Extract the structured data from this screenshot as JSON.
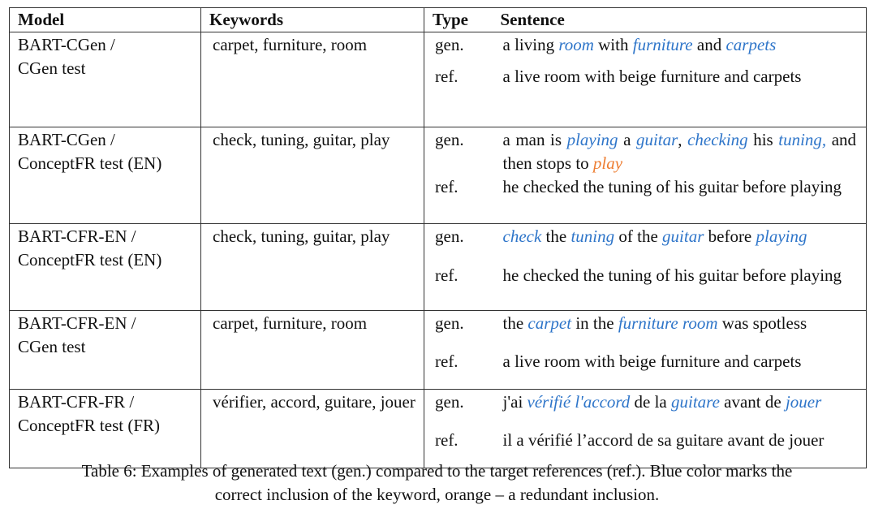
{
  "table": {
    "headers": [
      "Model",
      "Keywords",
      "Type",
      "Sentence"
    ],
    "rows": [
      {
        "model": [
          "BART-CGen /",
          "CGen test"
        ],
        "keywords": "carpet, furniture, room",
        "gen_type": "gen.",
        "gen": [
          [
            "a living ",
            "t"
          ],
          [
            "room",
            "b"
          ],
          [
            " with ",
            "t"
          ],
          [
            "furniture",
            "b"
          ],
          [
            " and ",
            "t"
          ],
          [
            "carpets",
            "b"
          ]
        ],
        "ref_type": "ref.",
        "ref": "a live room with beige furniture and carpets"
      },
      {
        "model": [
          "BART-CGen /",
          "ConceptFR test (EN)"
        ],
        "keywords": "check, tuning, guitar, play",
        "gen_type": "gen.",
        "gen": [
          [
            "a man is ",
            "t"
          ],
          [
            "playing",
            "b"
          ],
          [
            " a ",
            "t"
          ],
          [
            "guitar",
            "b"
          ],
          [
            ", ",
            "t"
          ],
          [
            "checking",
            "b"
          ],
          [
            " his ",
            "t"
          ],
          [
            "tuning,",
            "b"
          ],
          [
            " and then stops to ",
            "t"
          ],
          [
            "play",
            "o"
          ]
        ],
        "ref_type": "ref.",
        "ref": "he checked the tuning of his guitar before playing"
      },
      {
        "model": [
          "BART-CFR-EN /",
          "ConceptFR test (EN)"
        ],
        "keywords": "check, tuning, guitar, play",
        "gen_type": "gen.",
        "gen": [
          [
            "check",
            "b"
          ],
          [
            " the ",
            "t"
          ],
          [
            "tuning",
            "b"
          ],
          [
            " of the ",
            "t"
          ],
          [
            "guitar",
            "b"
          ],
          [
            " before ",
            "t"
          ],
          [
            "playing",
            "b"
          ]
        ],
        "ref_type": "ref.",
        "ref": "he checked the tuning of his guitar before playing"
      },
      {
        "model": [
          "BART-CFR-EN /",
          "CGen test"
        ],
        "keywords": "carpet, furniture, room",
        "gen_type": "gen.",
        "gen": [
          [
            "the ",
            "t"
          ],
          [
            "carpet",
            "b"
          ],
          [
            " in the ",
            "t"
          ],
          [
            "furniture room",
            "b"
          ],
          [
            " was spotless",
            "t"
          ]
        ],
        "ref_type": "ref.",
        "ref": "a live room with beige furniture and carpets"
      },
      {
        "model": [
          "BART-CFR-FR /",
          "ConceptFR test (FR)"
        ],
        "keywords": "vérifier, accord, guitare, jouer",
        "gen_type": "gen.",
        "gen": [
          [
            "j'ai ",
            "t"
          ],
          [
            "vérifié l'accord",
            "b"
          ],
          [
            " de la ",
            "t"
          ],
          [
            "guitare",
            "b"
          ],
          [
            " avant de ",
            "t"
          ],
          [
            "jouer",
            "b"
          ]
        ],
        "ref_type": "ref.",
        "ref": "il a vérifié l’accord de sa guitare avant de jouer"
      }
    ]
  },
  "caption": [
    "Table 6: Examples of generated text (gen.) compared to the target references (ref.). Blue color marks the",
    "correct inclusion of the keyword, orange – a redundant inclusion."
  ],
  "colors": {
    "correct_keyword": "#2e75c9",
    "redundant_keyword": "#ed7d31"
  }
}
